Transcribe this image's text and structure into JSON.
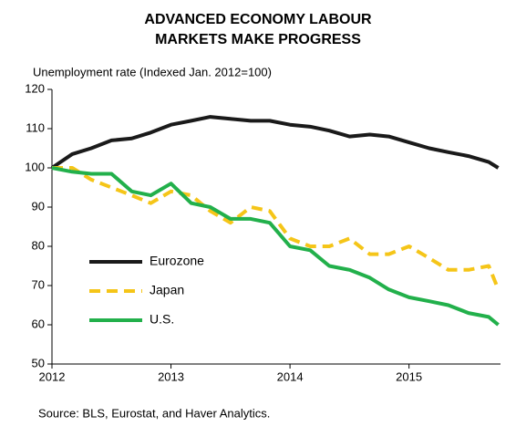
{
  "chart_data": {
    "type": "line",
    "title": [
      "ADVANCED ECONOMY LABOUR",
      "MARKETS MAKE PROGRESS"
    ],
    "y_label": "Unemployment rate (Indexed Jan. 2012=100)",
    "source": "Source: BLS, Eurostat, and Haver Analytics.",
    "x": [
      2012,
      2012.17,
      2012.33,
      2012.5,
      2012.67,
      2012.83,
      2013,
      2013.17,
      2013.33,
      2013.5,
      2013.67,
      2013.83,
      2014,
      2014.17,
      2014.33,
      2014.5,
      2014.67,
      2014.83,
      2015,
      2015.17,
      2015.33,
      2015.5,
      2015.67,
      2015.75
    ],
    "xlim": [
      2012,
      2015.83
    ],
    "xticks": [
      2012,
      2013,
      2014,
      2015
    ],
    "ylim": [
      50,
      120
    ],
    "yticks": [
      50,
      60,
      70,
      80,
      90,
      100,
      110,
      120
    ],
    "legend": "left",
    "series": [
      {
        "name": "Eurozone",
        "color": "#1a1a1a",
        "dash": false,
        "values": [
          100,
          103.5,
          105,
          107,
          107.5,
          109,
          111,
          112,
          113,
          112.5,
          112,
          112,
          111,
          110.5,
          109.5,
          108,
          108.5,
          108,
          106.5,
          105,
          104,
          103,
          101.5,
          100
        ]
      },
      {
        "name": "Japan",
        "color": "#f5c518",
        "dash": true,
        "values": [
          100,
          100,
          97,
          95,
          93,
          91,
          94,
          93,
          89,
          86,
          90,
          89,
          82,
          80,
          80,
          82,
          78,
          78,
          80,
          77,
          74,
          74,
          75,
          69
        ]
      },
      {
        "name": "U.S.",
        "color": "#22b04b",
        "dash": false,
        "values": [
          100,
          99,
          98.5,
          98.5,
          94,
          93,
          96,
          91,
          90,
          87,
          87,
          86,
          80,
          79,
          75,
          74,
          72,
          69,
          67,
          66,
          65,
          63,
          62,
          60
        ]
      }
    ]
  }
}
